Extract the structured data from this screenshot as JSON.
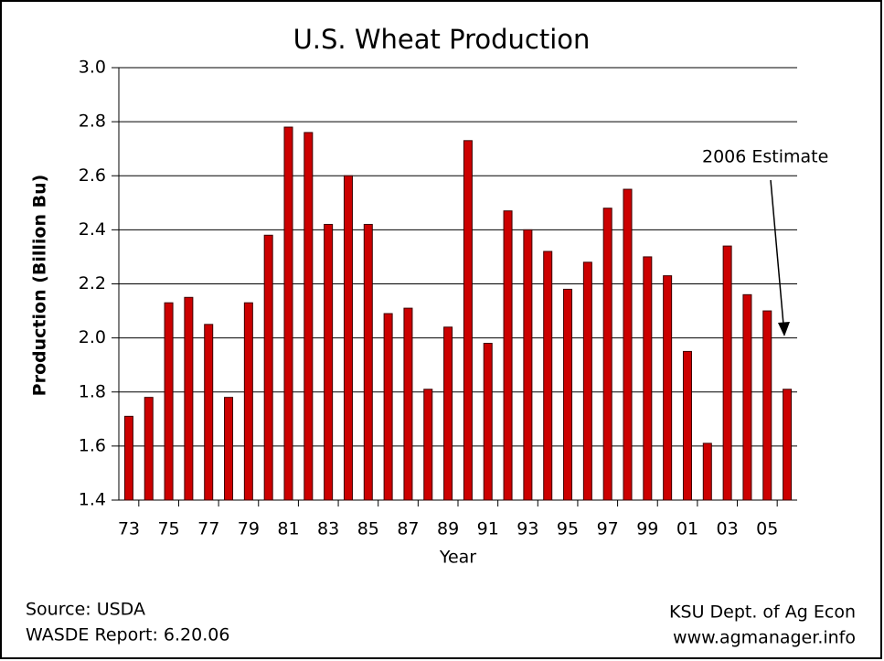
{
  "chart_data": {
    "type": "bar",
    "title": "U.S. Wheat Production",
    "x_label": "Year",
    "y_label": "Production (Billion Bu)",
    "categories": [
      "73",
      null,
      "75",
      null,
      "77",
      null,
      "79",
      null,
      "81",
      null,
      "83",
      null,
      "85",
      null,
      "87",
      null,
      "89",
      null,
      "91",
      null,
      "93",
      null,
      "95",
      null,
      "97",
      null,
      "99",
      null,
      "01",
      null,
      "03",
      null,
      "05",
      null
    ],
    "values": [
      1.71,
      1.78,
      2.13,
      2.15,
      2.05,
      1.78,
      2.13,
      2.38,
      2.78,
      2.76,
      2.42,
      2.6,
      2.42,
      2.09,
      2.11,
      1.81,
      2.04,
      2.73,
      1.98,
      2.47,
      2.4,
      2.32,
      2.18,
      2.28,
      2.48,
      2.55,
      2.3,
      2.23,
      1.95,
      1.61,
      2.34,
      2.16,
      2.1,
      1.81
    ],
    "color": "#cc0000",
    "ylim": [
      1.4,
      3.0
    ],
    "yticks": [
      1.4,
      1.6,
      1.8,
      {
        "value": 2.0,
        "label": "2.0"
      },
      2.2,
      2.4,
      2.6,
      2.8,
      {
        "value": 3.0,
        "label": "3.0"
      }
    ],
    "grid": true,
    "annotation": "2006 Estimate",
    "source": "Source:  USDA",
    "report": "WASDE Report: 6.20.06",
    "credit": "KSU Dept. of Ag Econ",
    "website": "www.agmanager.info"
  }
}
